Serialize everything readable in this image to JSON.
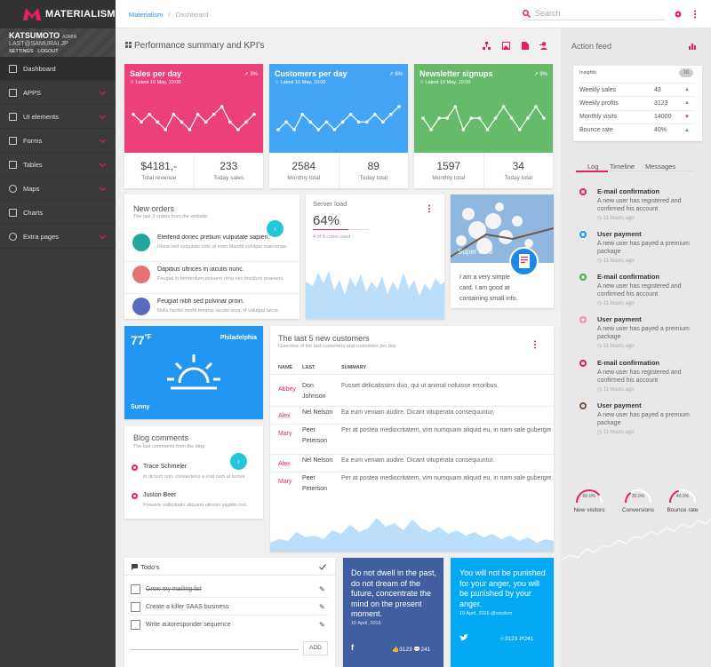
{
  "brand": {
    "name": "MATERIALISM"
  },
  "user": {
    "name": "KATSUMOTO",
    "role": "ADMIN",
    "email": "LAST@SAMURAI.JP",
    "settings": "SETTINGS",
    "logout": "LOGOUT"
  },
  "nav": [
    {
      "label": "Dashboard",
      "icon": "home-icon"
    },
    {
      "label": "APPS",
      "icon": "apps-icon"
    },
    {
      "label": "UI elements",
      "icon": "ui-elements-icon"
    },
    {
      "label": "Forms",
      "icon": "forms-icon"
    },
    {
      "label": "Tables",
      "icon": "tables-icon"
    },
    {
      "label": "Maps",
      "icon": "map-marker-icon"
    },
    {
      "label": "Charts",
      "icon": "charts-icon"
    },
    {
      "label": "Extra pages",
      "icon": "heart-icon"
    }
  ],
  "breadcrumb": {
    "root": "Materialism",
    "sep": "/",
    "current": "Dashboard"
  },
  "search": {
    "placeholder": "Search"
  },
  "page": {
    "title": "Performance summary and KPI's"
  },
  "kpis": [
    {
      "title": "Sales per day",
      "sub": "Latest 10 May, 10:00",
      "percent": "3%",
      "color": "#ec407a",
      "v1": "$4181,-",
      "l1": "Total revenue",
      "v2": "233",
      "l2": "Today sales",
      "spark": [
        7,
        6,
        7,
        6,
        5,
        7,
        6,
        5,
        7,
        6,
        7,
        8,
        6,
        5,
        6,
        7
      ]
    },
    {
      "title": "Customers per day",
      "sub": "Latest 10 May, 10:00",
      "percent": "6%",
      "color": "#42a5f5",
      "v1": "2584",
      "l1": "Monthly total",
      "v2": "89",
      "l2": "Today total",
      "spark": [
        5,
        6,
        5,
        7,
        6,
        5,
        6,
        5,
        6,
        7,
        6,
        6,
        7,
        6,
        7,
        8
      ]
    },
    {
      "title": "Newsletter signups",
      "sub": "Latest 10 May, 10:00",
      "percent": "9%",
      "color": "#66bb6a",
      "v1": "1597",
      "l1": "Monthly total",
      "v2": "34",
      "l2": "Today total",
      "spark": [
        6,
        5,
        6,
        6,
        7,
        5,
        6,
        6,
        5,
        6,
        7,
        6,
        5,
        6,
        7,
        6
      ]
    }
  ],
  "orders": {
    "title": "New orders",
    "sub": "The last 3 orders from the website",
    "items": [
      {
        "title": "Eleifend donec pretium vulputate sapien.",
        "desc": "Risus sed vulputate odio ut enim blandit volutpat maecenas."
      },
      {
        "title": "Dapibus ultrices in iaculis nunc.",
        "desc": "Feugiat in fermentum posuere urna nec tincidunt praesent."
      },
      {
        "title": "Feugiat nibh sed pulvinar proin.",
        "desc": "Nulla facilisi morbi tempus iaculis urna, id volutpat lacus."
      }
    ]
  },
  "server": {
    "title": "Server load",
    "value": "64%",
    "sub": "4 of 8 cores used",
    "progress": 0.64
  },
  "supercard": {
    "label": "Super card",
    "text": "I am a very simple card. I am good at containing small info."
  },
  "weather": {
    "temp": "77",
    "unit": "°F",
    "city": "Philadelphia",
    "cond": "Sunny"
  },
  "customers": {
    "title": "The last 5 new customers",
    "sub": "Overview of the last customers and customers per day",
    "cols": [
      "NAME",
      "LAST",
      "SUMMARY"
    ],
    "rows": [
      {
        "name": "Abbey",
        "last": "Don Johnson",
        "summary": "Fusset delicatissimi duo, qui ut animal noluisse erroribus."
      },
      {
        "name": "Alex",
        "last": "Nel Nelson",
        "summary": "Ea eum veniam audire. Dicant vituperata consequuntur."
      },
      {
        "name": "Mary",
        "last": "Peet Peterson",
        "summary": "Per at postea mediocritatem, vim numquam aliquid eu, in nam sale gubergren."
      },
      {
        "name": "Alex",
        "last": "Nel Nelson",
        "summary": "Ea eum veniam audire. Dicant vituperata consequuntur."
      },
      {
        "name": "Mary",
        "last": "Peet Peterson",
        "summary": "Per at postea mediocritatem, vim numquam aliquid eu, in nam sale gubergren."
      }
    ]
  },
  "blog": {
    "title": "Blog comments",
    "sub": "The last comments from the blog",
    "items": [
      {
        "name": "Trace Schmeler",
        "text": "In dictum non, consectetur a erat nam at lectus."
      },
      {
        "name": "Juston Beer",
        "text": "Posuere sollicitudin aliquam ultrices sagittis orci."
      }
    ]
  },
  "todo": {
    "title": "Todo's",
    "items": [
      {
        "text": "Grow my mailing list",
        "done": true
      },
      {
        "text": "Create a killer SAAS business",
        "done": false
      },
      {
        "text": "Write autoresponder sequence",
        "done": false
      }
    ],
    "add": "ADD"
  },
  "quote1": {
    "text": "Do not dwell in the past, do not dream of the future, concentrate the mind on the present moment.",
    "date": "10 April, 2016",
    "likes": "3123",
    "comments": "241"
  },
  "quote2": {
    "text": "You will not be punished for your anger, you will be punished by your anger.",
    "date": "10 April, 2016",
    "handle": "@wisdom",
    "likes": "3123",
    "comments": "241"
  },
  "feed": {
    "title": "Action feed",
    "insights": {
      "title": "Insights",
      "badge": "16",
      "rows": [
        {
          "label": "Weekly sales",
          "value": "43",
          "trend": "up"
        },
        {
          "label": "Weekly profits",
          "value": "3123",
          "trend": "up"
        },
        {
          "label": "Monthly visits",
          "value": "14000",
          "trend": "down"
        },
        {
          "label": "Bounce rate",
          "value": "40%",
          "trend": "up"
        }
      ]
    },
    "tabs": [
      "Log",
      "Timeline",
      "Messages"
    ],
    "items": [
      {
        "title": "E-mail confirmation",
        "text": "A new user has registered and confirmed his account",
        "time": "11 hours ago",
        "color": "#e91e63"
      },
      {
        "title": "User payment",
        "text": "A new user has payed a premium package",
        "time": "11 hours ago",
        "color": "#2196f3"
      },
      {
        "title": "E-mail confirmation",
        "text": "A new user has registered and confirmed his account",
        "time": "11 hours ago",
        "color": "#4caf50"
      },
      {
        "title": "User payment",
        "text": "A new user has payed a premium package",
        "time": "11 hours ago",
        "color": "#f48fb1"
      },
      {
        "title": "E-mail confirmation",
        "text": "A new user has registered and confirmed his account",
        "time": "11 hours ago",
        "color": "#e91e63"
      },
      {
        "title": "User payment",
        "text": "A new user has payed a premium package",
        "time": "11 hours ago",
        "color": "#795548"
      }
    ],
    "gauges": [
      {
        "value": "80.0%",
        "label": "New visitors",
        "fraction": 0.8
      },
      {
        "value": "30.0%",
        "label": "Conversions",
        "fraction": 0.3
      },
      {
        "value": "40.0%",
        "label": "Bounce rate",
        "fraction": 0.4
      }
    ]
  }
}
